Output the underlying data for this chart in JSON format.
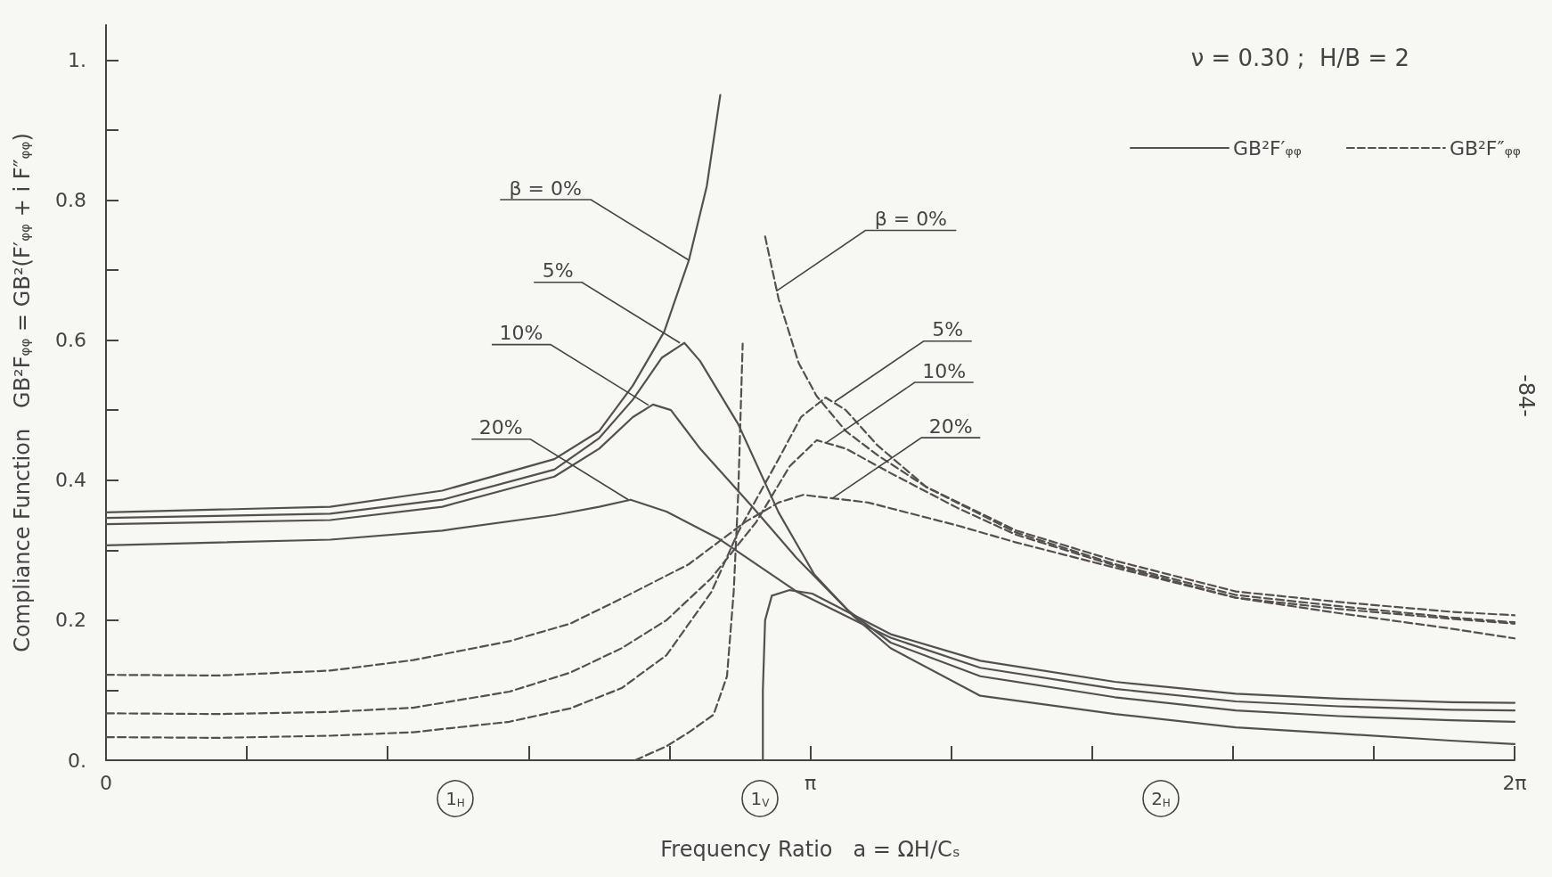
{
  "chart_data": {
    "type": "line",
    "xlabel": "Frequency Ratio   a = ΩH/Cₛ",
    "ylabel": "Compliance Function   GB²Fᵩᵩ = GB²(F′ᵩᵩ + i F″ᵩᵩ)",
    "xlim": [
      0,
      6.2832
    ],
    "ylim": [
      0,
      1.05
    ],
    "xticks": [
      0,
      {
        "value": 0.6283,
        "label": null
      },
      {
        "value": 1.2566,
        "label": null
      },
      {
        "value": 1.885,
        "label": null
      },
      {
        "value": 2.5133,
        "label": null
      },
      {
        "value": 3.1416,
        "label": "π"
      },
      {
        "value": 3.7699,
        "label": null
      },
      {
        "value": 4.3982,
        "label": null
      },
      {
        "value": 5.0265,
        "label": null
      },
      {
        "value": 5.6549,
        "label": null
      },
      {
        "value": 6.2832,
        "label": "2π"
      }
    ],
    "yticks": [
      {
        "value": 0,
        "label": "0."
      },
      {
        "value": 0.1,
        "label": null
      },
      0.2,
      {
        "value": 0.3,
        "label": null
      },
      0.4,
      {
        "value": 0.5,
        "label": null
      },
      0.6,
      {
        "value": 0.7,
        "label": null
      },
      0.8,
      {
        "value": 0.9,
        "label": null
      },
      {
        "value": 1,
        "label": "1."
      }
    ],
    "grid": false,
    "legend": "top right",
    "series": [
      {
        "name": "GB²F′ᵩᵩ",
        "color": "#555050",
        "line_style": "solid",
        "x": [
          0,
          1,
          1.5,
          2,
          2.2,
          2.35,
          2.49,
          2.6,
          2.68,
          2.74
        ],
        "values": [
          0.354,
          0.362,
          0.385,
          0.43,
          0.47,
          0.535,
          0.612,
          0.714,
          0.82,
          0.95
        ]
      },
      {
        "color": "#555050",
        "line_style": "solid",
        "x": [
          2.93,
          2.93,
          2.94,
          2.97,
          3.05,
          3.15,
          3.35,
          3.5,
          3.9,
          4.5,
          5.04,
          5.5,
          6,
          6.2832
        ],
        "values": [
          0,
          0.1,
          0.2,
          0.235,
          0.243,
          0.238,
          0.205,
          0.18,
          0.142,
          0.112,
          0.095,
          0.088,
          0.083,
          0.082
        ]
      },
      {
        "color": "#555050",
        "line_style": "solid",
        "x": [
          0,
          1,
          1.5,
          2,
          2.2,
          2.35,
          2.48,
          2.58,
          2.65,
          2.82,
          3.0,
          3.16,
          3.33,
          3.5,
          3.9,
          4.5,
          5.04,
          5.5,
          6,
          6.2832
        ],
        "values": [
          0.346,
          0.352,
          0.372,
          0.415,
          0.46,
          0.515,
          0.575,
          0.596,
          0.57,
          0.48,
          0.354,
          0.265,
          0.207,
          0.16,
          0.092,
          0.066,
          0.047,
          0.038,
          0.028,
          0.023
        ]
      },
      {
        "color": "#555050",
        "line_style": "solid",
        "x": [
          0,
          1,
          1.5,
          2,
          2.2,
          2.35,
          2.44,
          2.52,
          2.65,
          2.88,
          3.08,
          3.31,
          3.5,
          3.9,
          4.5,
          5.04,
          5.5,
          6,
          6.2832
        ],
        "values": [
          0.337,
          0.343,
          0.362,
          0.405,
          0.445,
          0.49,
          0.508,
          0.5,
          0.445,
          0.363,
          0.289,
          0.214,
          0.168,
          0.12,
          0.09,
          0.071,
          0.063,
          0.057,
          0.055
        ]
      },
      {
        "color": "#555050",
        "line_style": "solid",
        "x": [
          0,
          1,
          1.5,
          2,
          2.2,
          2.34,
          2.5,
          2.73,
          3.08,
          3.37,
          3.5,
          3.9,
          4.5,
          5.04,
          5.5,
          6,
          6.2832
        ],
        "values": [
          0.307,
          0.315,
          0.328,
          0.35,
          0.362,
          0.372,
          0.355,
          0.317,
          0.241,
          0.195,
          0.175,
          0.132,
          0.102,
          0.084,
          0.077,
          0.072,
          0.071
        ]
      },
      {
        "name": "GB²F″ᵩᵩ",
        "color": "#555050",
        "line_style": "dashed",
        "x": [
          2.36,
          2.5,
          2.6,
          2.71,
          2.77,
          2.8,
          2.82,
          2.84
        ],
        "values": [
          0,
          0.02,
          0.04,
          0.065,
          0.12,
          0.241,
          0.38,
          0.595
        ]
      },
      {
        "color": "#555050",
        "line_style": "dashed",
        "x": [
          2.94,
          3.0,
          3.09,
          3.17,
          3.3,
          3.44,
          3.66,
          4.06,
          4.5,
          5.04,
          5.5,
          6,
          6.2832
        ],
        "values": [
          0.748,
          0.659,
          0.567,
          0.52,
          0.47,
          0.436,
          0.39,
          0.328,
          0.285,
          0.241,
          0.226,
          0.212,
          0.207
        ]
      },
      {
        "color": "#555050",
        "line_style": "dashed",
        "x": [
          0,
          0.5,
          1,
          1.37,
          1.8,
          2.07,
          2.3,
          2.5,
          2.7,
          2.82,
          3.0,
          3.1,
          3.21,
          3.3,
          3.44,
          3.66,
          4.06,
          4.5,
          5.04,
          5.5,
          6,
          6.2832
        ],
        "values": [
          0.033,
          0.032,
          0.035,
          0.04,
          0.055,
          0.074,
          0.103,
          0.15,
          0.24,
          0.326,
          0.43,
          0.49,
          0.518,
          0.5,
          0.45,
          0.39,
          0.325,
          0.28,
          0.236,
          0.22,
          0.204,
          0.197
        ]
      },
      {
        "color": "#555050",
        "line_style": "dashed",
        "x": [
          0,
          0.5,
          1,
          1.37,
          1.8,
          2.07,
          2.3,
          2.5,
          2.7,
          2.9,
          3.05,
          3.17,
          3.3,
          3.5,
          3.8,
          4.06,
          4.5,
          5.04,
          5.5,
          6,
          6.2832
        ],
        "values": [
          0.067,
          0.066,
          0.069,
          0.075,
          0.098,
          0.125,
          0.16,
          0.2,
          0.26,
          0.34,
          0.42,
          0.457,
          0.445,
          0.41,
          0.36,
          0.322,
          0.278,
          0.232,
          0.216,
          0.202,
          0.195
        ]
      },
      {
        "color": "#555050",
        "line_style": "dashed",
        "x": [
          0,
          0.5,
          1,
          1.37,
          1.8,
          2.07,
          2.3,
          2.6,
          2.85,
          3.0,
          3.11,
          3.4,
          3.8,
          4.06,
          4.5,
          5.04,
          5.5,
          6,
          6.2832
        ],
        "values": [
          0.122,
          0.121,
          0.128,
          0.143,
          0.17,
          0.195,
          0.231,
          0.28,
          0.34,
          0.368,
          0.379,
          0.368,
          0.335,
          0.311,
          0.275,
          0.232,
          0.21,
          0.188,
          0.174
        ]
      }
    ],
    "annotations": [
      "ν = 0.30 ;  H/B = 2",
      "-84-",
      "1$_{H}$",
      "1$_{V}$",
      "2$_{H}$",
      {
        "text": "β = 0%",
        "x": 2.6,
        "y": 0.714
      },
      {
        "text": "5%",
        "x": 2.56,
        "y": 0.596
      },
      {
        "text": "10%",
        "x": 2.42,
        "y": 0.507
      },
      {
        "text": "20%",
        "x": 2.33,
        "y": 0.372
      },
      {
        "text": "β = 0%",
        "x": 2.99,
        "y": 0.67
      },
      {
        "text": "5%",
        "x": 3.25,
        "y": 0.512
      },
      {
        "text": "10%",
        "x": 3.21,
        "y": 0.453
      },
      {
        "text": "20%",
        "x": 3.24,
        "y": 0.374
      }
    ]
  }
}
